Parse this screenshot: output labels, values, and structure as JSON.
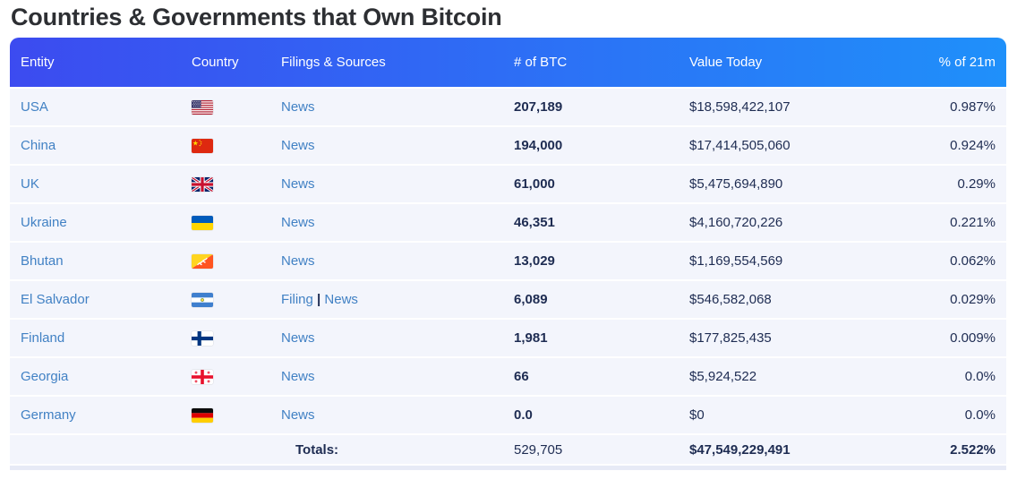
{
  "title": "Countries & Governments that Own Bitcoin",
  "table": {
    "headers": {
      "entity": "Entity",
      "country": "Country",
      "sources": "Filings & Sources",
      "btc": "# of BTC",
      "value": "Value Today",
      "pct": "% of 21m"
    },
    "source_separator": "|",
    "rows": [
      {
        "entity": "USA",
        "flag": "usa",
        "sources": [
          "News"
        ],
        "btc": "207,189",
        "value": "$18,598,422,107",
        "pct": "0.987%"
      },
      {
        "entity": "China",
        "flag": "china",
        "sources": [
          "News"
        ],
        "btc": "194,000",
        "value": "$17,414,505,060",
        "pct": "0.924%"
      },
      {
        "entity": "UK",
        "flag": "uk",
        "sources": [
          "News"
        ],
        "btc": "61,000",
        "value": "$5,475,694,890",
        "pct": "0.29%"
      },
      {
        "entity": "Ukraine",
        "flag": "ukraine",
        "sources": [
          "News"
        ],
        "btc": "46,351",
        "value": "$4,160,720,226",
        "pct": "0.221%"
      },
      {
        "entity": "Bhutan",
        "flag": "bhutan",
        "sources": [
          "News"
        ],
        "btc": "13,029",
        "value": "$1,169,554,569",
        "pct": "0.062%"
      },
      {
        "entity": "El Salvador",
        "flag": "el-salvador",
        "sources": [
          "Filing",
          "News"
        ],
        "btc": "6,089",
        "value": "$546,582,068",
        "pct": "0.029%"
      },
      {
        "entity": "Finland",
        "flag": "finland",
        "sources": [
          "News"
        ],
        "btc": "1,981",
        "value": "$177,825,435",
        "pct": "0.009%"
      },
      {
        "entity": "Georgia",
        "flag": "georgia",
        "sources": [
          "News"
        ],
        "btc": "66",
        "value": "$5,924,522",
        "pct": "0.0%"
      },
      {
        "entity": "Germany",
        "flag": "germany",
        "sources": [
          "News"
        ],
        "btc": "0.0",
        "value": "$0",
        "pct": "0.0%"
      }
    ],
    "totals": {
      "label": "Totals:",
      "btc": "529,705",
      "value": "$47,549,229,491",
      "pct": "2.522%"
    }
  },
  "colors": {
    "header_gradient_start": "#3c4bf0",
    "header_gradient_end": "#1f90fa",
    "row_background": "#f3f5fc",
    "link": "#4181c4",
    "text_dark": "#1e2c52",
    "title": "#2d2f33"
  }
}
